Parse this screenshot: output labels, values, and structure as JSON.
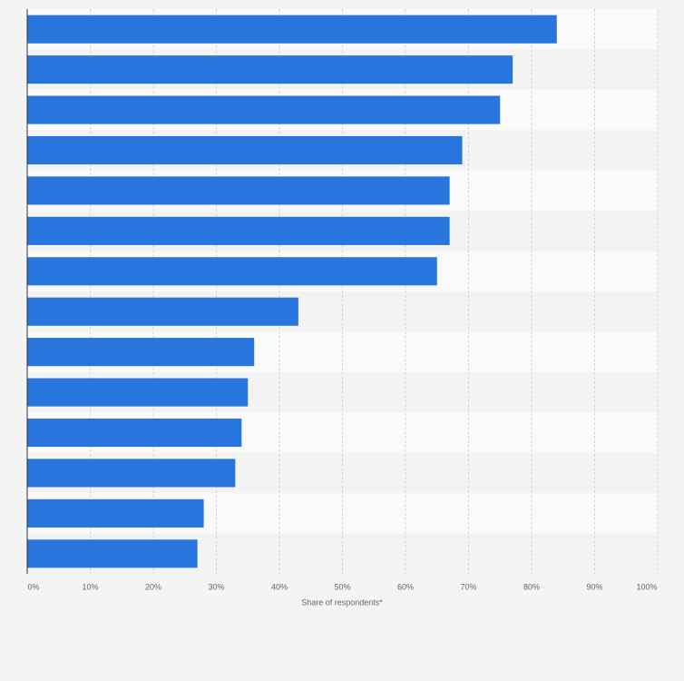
{
  "chart_data": {
    "type": "bar",
    "orientation": "horizontal",
    "categories": [
      null,
      null,
      null,
      null,
      null,
      null,
      null,
      null,
      null,
      null,
      null,
      null,
      null,
      null
    ],
    "values": [
      84,
      77,
      75,
      69,
      67,
      67,
      65,
      43,
      36,
      35,
      34,
      33,
      28,
      27
    ],
    "color": "#2876dd",
    "xlabel": "Share of respondents*",
    "xlim": [
      0,
      100
    ],
    "xticks": [
      {
        "value": 0,
        "label": "0%"
      },
      {
        "value": 10,
        "label": "10%"
      },
      {
        "value": 20,
        "label": "20%"
      },
      {
        "value": 30,
        "label": "30%"
      },
      {
        "value": 40,
        "label": "40%"
      },
      {
        "value": 50,
        "label": "50%"
      },
      {
        "value": 60,
        "label": "60%"
      },
      {
        "value": 70,
        "label": "70%"
      },
      {
        "value": 80,
        "label": "80%"
      },
      {
        "value": 90,
        "label": "90%"
      },
      {
        "value": 100,
        "label": "100%"
      }
    ],
    "grid": true
  }
}
